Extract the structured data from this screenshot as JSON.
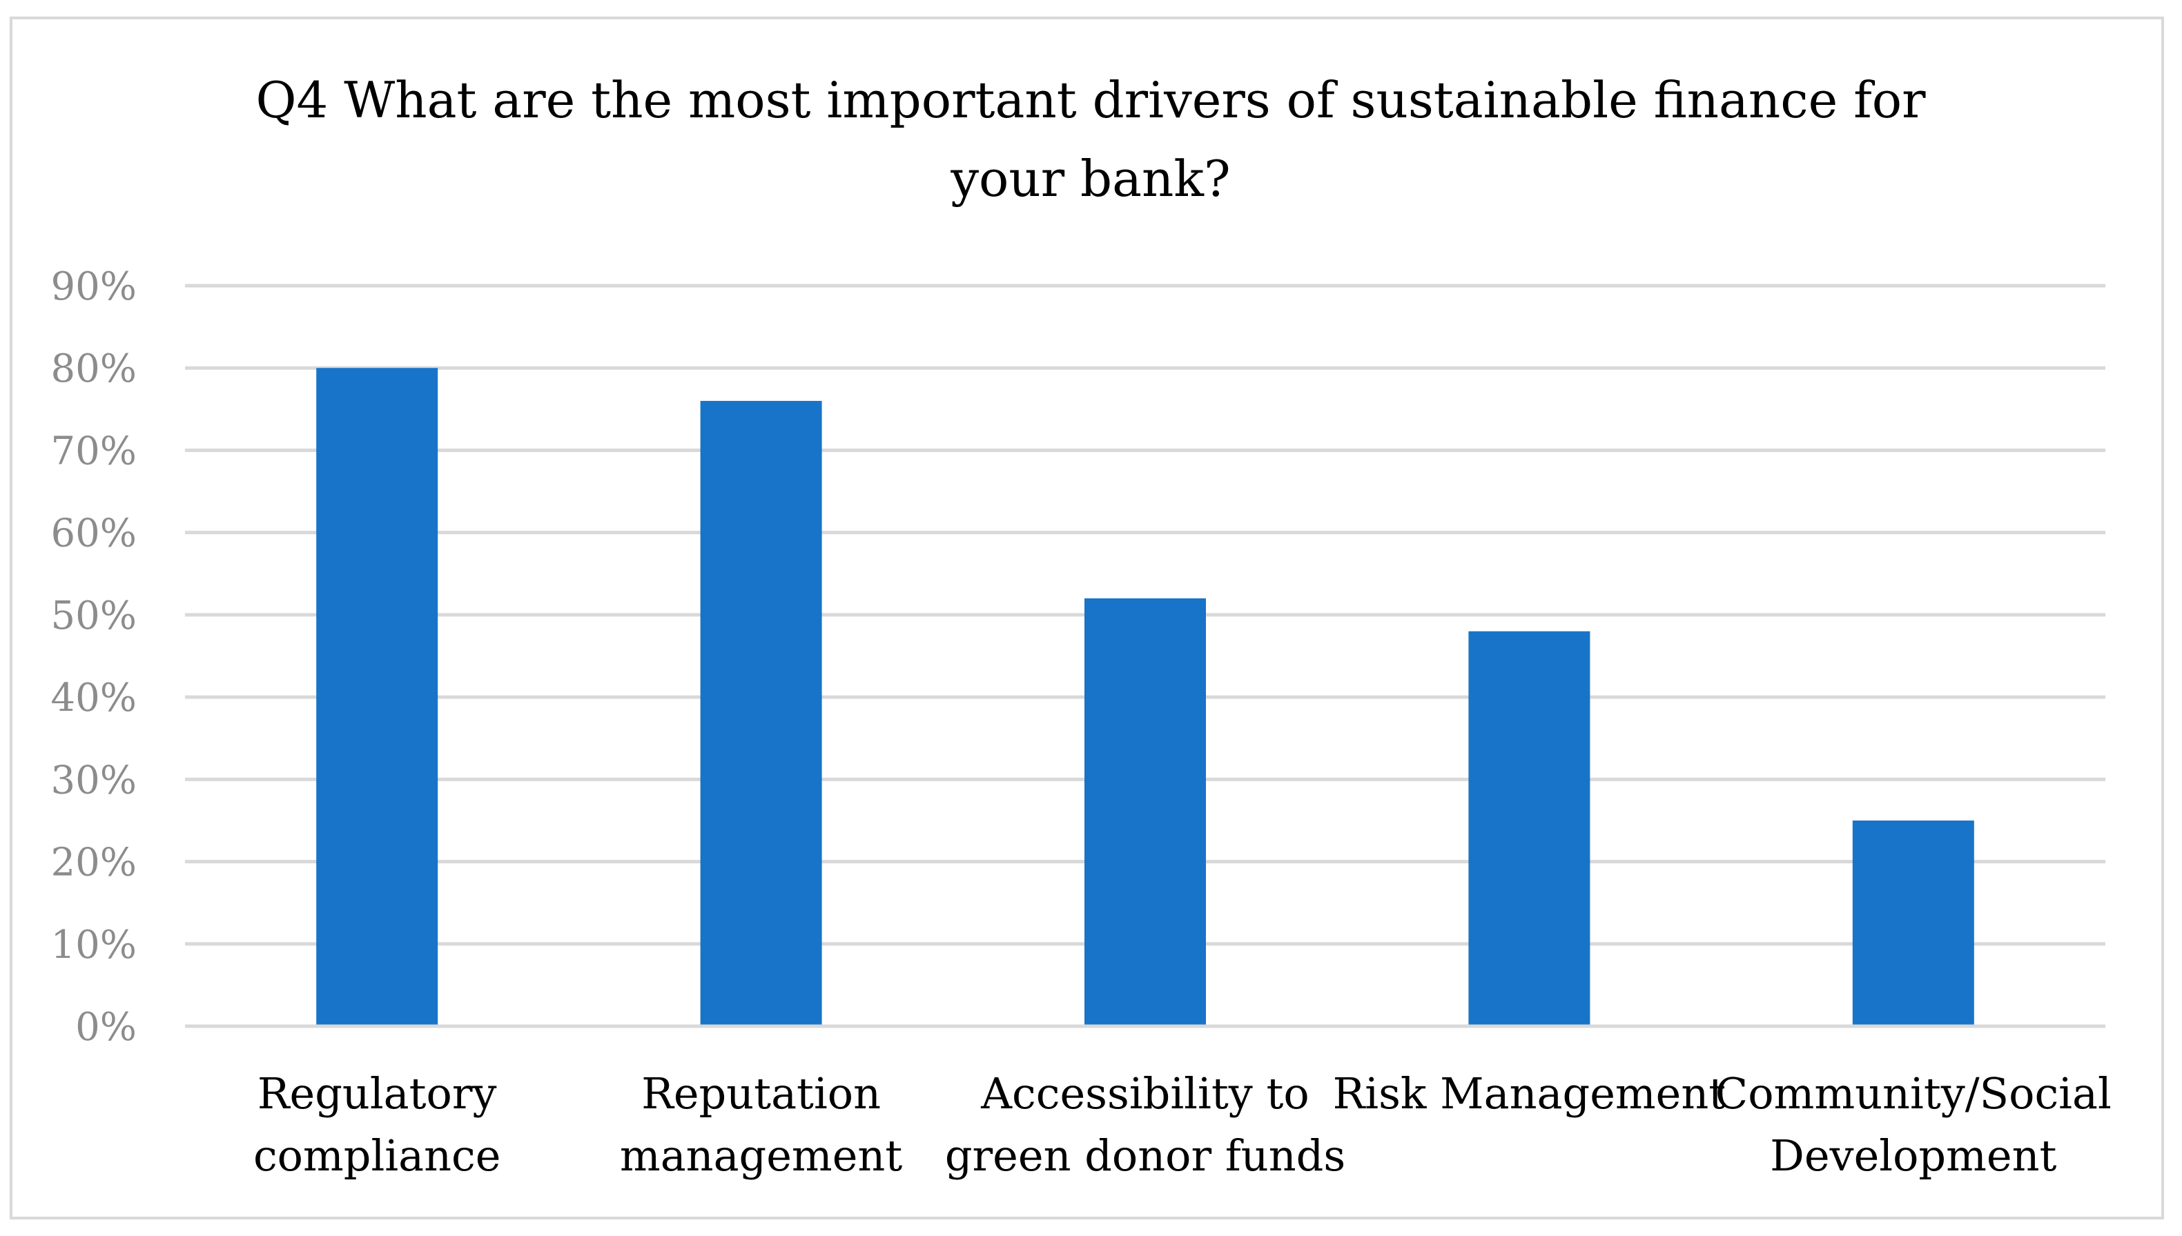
{
  "chart_data": {
    "type": "bar",
    "title": [
      "Q4 What are the most important drivers of sustainable finance for",
      "your bank?"
    ],
    "categories": [
      [
        "Regulatory",
        "compliance"
      ],
      [
        "Reputation",
        "management"
      ],
      [
        "Accessibility to",
        "green donor funds"
      ],
      [
        "Risk Management"
      ],
      [
        "Community/Social",
        "Development"
      ]
    ],
    "values": [
      80,
      76,
      52,
      48,
      25
    ],
    "ylim": [
      0,
      90
    ],
    "yticks": [
      0,
      10,
      20,
      30,
      40,
      50,
      60,
      70,
      80,
      90
    ],
    "ytick_labels": [
      "0%",
      "10%",
      "20%",
      "30%",
      "40%",
      "50%",
      "60%",
      "70%",
      "80%",
      "90%"
    ],
    "xlabel": "",
    "ylabel": "",
    "grid": true,
    "bar_color": "#1874c8",
    "grid_color": "#d9d9d9"
  }
}
